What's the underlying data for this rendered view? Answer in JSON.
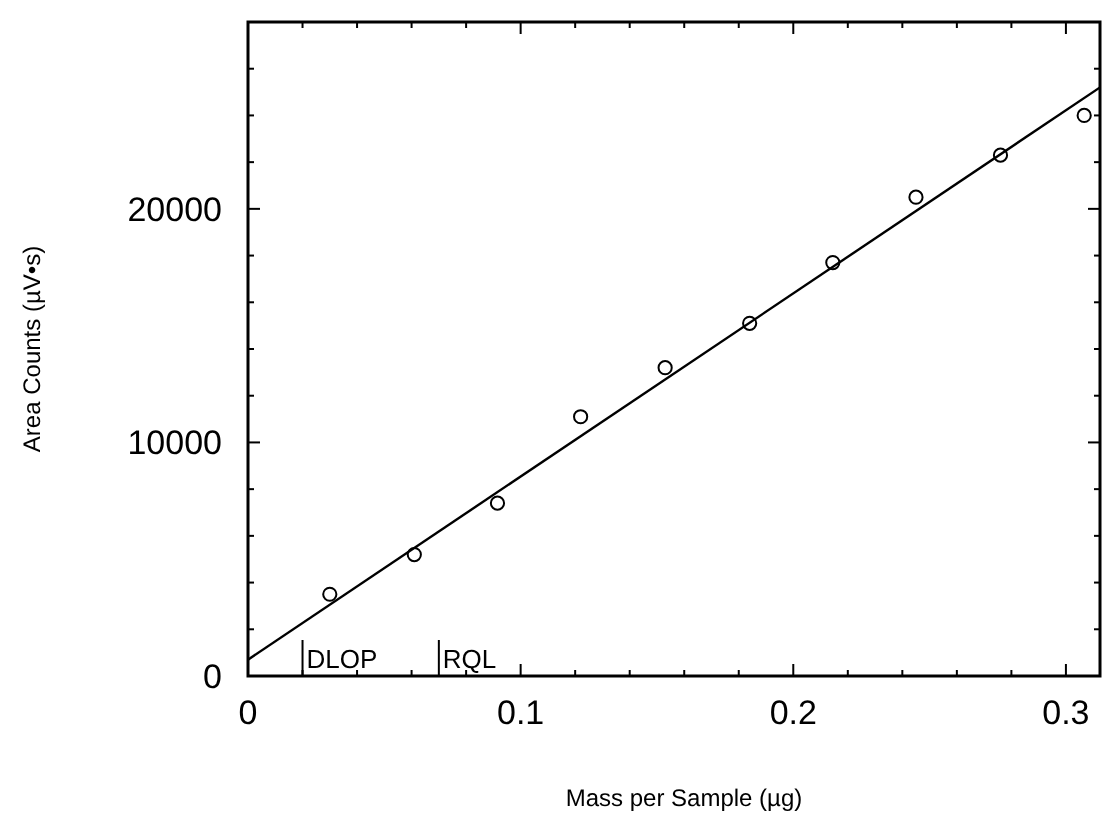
{
  "chart_data": {
    "type": "scatter",
    "xlabel": "Mass per Sample (µg)",
    "ylabel": "Area Counts (µV•s)",
    "xlim": [
      0,
      0.3125
    ],
    "ylim": [
      0,
      28000
    ],
    "xticks": [
      0,
      {
        "value": 0.02,
        "label": null
      },
      {
        "value": 0.04,
        "label": null
      },
      {
        "value": 0.06,
        "label": null
      },
      {
        "value": 0.08,
        "label": null
      },
      0.1,
      {
        "value": 0.12,
        "label": null
      },
      {
        "value": 0.14,
        "label": null
      },
      {
        "value": 0.16,
        "label": null
      },
      {
        "value": 0.18,
        "label": null
      },
      0.2,
      {
        "value": 0.22,
        "label": null
      },
      {
        "value": 0.24,
        "label": null
      },
      {
        "value": 0.26,
        "label": null
      },
      {
        "value": 0.28,
        "label": null
      },
      0.3
    ],
    "yticks": [
      0,
      {
        "value": 2000,
        "label": null
      },
      {
        "value": 4000,
        "label": null
      },
      {
        "value": 6000,
        "label": null
      },
      {
        "value": 8000,
        "label": null
      },
      10000,
      {
        "value": 12000,
        "label": null
      },
      {
        "value": 14000,
        "label": null
      },
      {
        "value": 16000,
        "label": null
      },
      {
        "value": 18000,
        "label": null
      },
      20000,
      {
        "value": 22000,
        "label": null
      },
      {
        "value": 24000,
        "label": null
      },
      {
        "value": 26000,
        "label": null
      }
    ],
    "grid": false,
    "series": [
      {
        "color": "#000000",
        "marker": "circle",
        "x": [
          0.03,
          0.061,
          0.0915,
          0.122,
          0.153,
          0.184,
          0.2145,
          0.245,
          0.276,
          0.3067
        ],
        "values": [
          3500,
          5200,
          7400,
          11100,
          13200,
          15100,
          17700,
          20500,
          22300,
          24000
        ]
      },
      {
        "type": "line",
        "color": "#000000",
        "marker": "none",
        "x": [
          0,
          0.3125
        ],
        "values": [
          700,
          25200
        ]
      }
    ],
    "ref_lines": [
      {
        "axis": "x",
        "value": 0.02,
        "label": "DLOP"
      },
      {
        "axis": "x",
        "value": 0.07,
        "label": "RQL"
      }
    ]
  }
}
